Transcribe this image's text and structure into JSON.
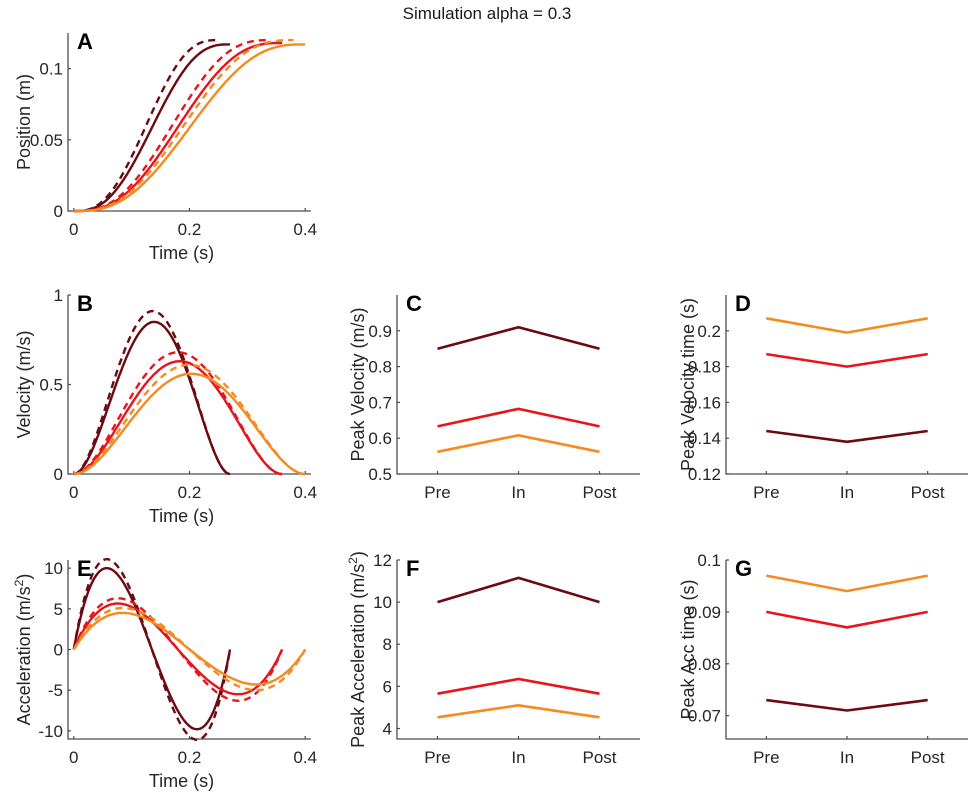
{
  "title": "Simulation alpha = 0.3",
  "colors": {
    "dark_red": "#6b0a10",
    "red": "#e8141c",
    "orange": "#f58a1f",
    "axis": "#4d4d4d",
    "text": "#262626"
  },
  "chart_data": [
    {
      "id": "A",
      "panel_letter": "A",
      "type": "line",
      "xlabel": "Time (s)",
      "ylabel": "Position (m)",
      "xlim": [
        -0.01,
        0.41
      ],
      "ylim": [
        0,
        0.125
      ],
      "xticks": [
        0,
        0.2,
        0.4
      ],
      "xtick_labels": [
        "0",
        "0.2",
        "0.4"
      ],
      "yticks": [
        0,
        0.05,
        0.1
      ],
      "ytick_labels": [
        "0",
        "0.05",
        "0.1"
      ],
      "quantity": "position",
      "amplitude_m": 0.12,
      "series": [
        {
          "name": "dark red solid",
          "color": "dark_red",
          "dashed": false,
          "duration_s": 0.27,
          "amplitude_m": 0.117
        },
        {
          "name": "dark red dashed",
          "color": "dark_red",
          "dashed": true,
          "duration_s": 0.25,
          "amplitude_m": 0.12
        },
        {
          "name": "red solid",
          "color": "red",
          "dashed": false,
          "duration_s": 0.36,
          "amplitude_m": 0.118
        },
        {
          "name": "red dashed",
          "color": "red",
          "dashed": true,
          "duration_s": 0.34,
          "amplitude_m": 0.12
        },
        {
          "name": "orange solid",
          "color": "orange",
          "dashed": false,
          "duration_s": 0.4,
          "amplitude_m": 0.117
        },
        {
          "name": "orange dashed",
          "color": "orange",
          "dashed": true,
          "duration_s": 0.38,
          "amplitude_m": 0.12
        }
      ]
    },
    {
      "id": "B",
      "panel_letter": "B",
      "type": "line",
      "xlabel": "Time (s)",
      "ylabel": "Velocity (m/s)",
      "xlim": [
        -0.01,
        0.41
      ],
      "ylim": [
        0,
        1
      ],
      "xticks": [
        0,
        0.2,
        0.4
      ],
      "xtick_labels": [
        "0",
        "0.2",
        "0.4"
      ],
      "yticks": [
        0,
        0.5,
        1
      ],
      "ytick_labels": [
        "0",
        "0.5",
        "1"
      ],
      "quantity": "velocity",
      "series": [
        {
          "name": "dark red solid",
          "color": "dark_red",
          "dashed": false,
          "duration_s": 0.27,
          "peak": 0.85,
          "peak_time_s": 0.144
        },
        {
          "name": "dark red dashed",
          "color": "dark_red",
          "dashed": true,
          "duration_s": 0.27,
          "peak": 0.91,
          "peak_time_s": 0.138
        },
        {
          "name": "red solid",
          "color": "red",
          "dashed": false,
          "duration_s": 0.36,
          "peak": 0.63,
          "peak_time_s": 0.187
        },
        {
          "name": "red dashed",
          "color": "red",
          "dashed": true,
          "duration_s": 0.36,
          "peak": 0.68,
          "peak_time_s": 0.18
        },
        {
          "name": "orange solid",
          "color": "orange",
          "dashed": false,
          "duration_s": 0.4,
          "peak": 0.56,
          "peak_time_s": 0.207
        },
        {
          "name": "orange dashed",
          "color": "orange",
          "dashed": true,
          "duration_s": 0.4,
          "peak": 0.61,
          "peak_time_s": 0.199
        }
      ]
    },
    {
      "id": "C",
      "panel_letter": "C",
      "type": "line",
      "xlabel": "",
      "ylabel": "Peak Velocity (m/s)",
      "categories": [
        "Pre",
        "In",
        "Post"
      ],
      "xlim": [
        0.5,
        3.5
      ],
      "ylim": [
        0.5,
        1.0
      ],
      "yticks": [
        0.5,
        0.6,
        0.7,
        0.8,
        0.9
      ],
      "ytick_labels": [
        "0.5",
        "0.6",
        "0.7",
        "0.8",
        "0.9"
      ],
      "series": [
        {
          "name": "dark red",
          "color": "dark_red",
          "values": [
            0.85,
            0.91,
            0.85
          ]
        },
        {
          "name": "red",
          "color": "red",
          "values": [
            0.633,
            0.682,
            0.633
          ]
        },
        {
          "name": "orange",
          "color": "orange",
          "values": [
            0.562,
            0.608,
            0.562
          ]
        }
      ]
    },
    {
      "id": "D",
      "panel_letter": "D",
      "type": "line",
      "xlabel": "",
      "ylabel": "Peak Velocity time (s)",
      "categories": [
        "Pre",
        "In",
        "Post"
      ],
      "xlim": [
        0.5,
        3.5
      ],
      "ylim": [
        0.12,
        0.22
      ],
      "yticks": [
        0.12,
        0.14,
        0.16,
        0.18,
        0.2
      ],
      "ytick_labels": [
        "0.12",
        "0.14",
        "0.16",
        "0.18",
        "0.2"
      ],
      "series": [
        {
          "name": "orange",
          "color": "orange",
          "values": [
            0.207,
            0.199,
            0.207
          ]
        },
        {
          "name": "red",
          "color": "red",
          "values": [
            0.187,
            0.18,
            0.187
          ]
        },
        {
          "name": "dark red",
          "color": "dark_red",
          "values": [
            0.144,
            0.138,
            0.144
          ]
        }
      ]
    },
    {
      "id": "E",
      "panel_letter": "E",
      "type": "line",
      "xlabel": "Time (s)",
      "ylabel": "Acceleration (m/s²)",
      "ylabel_parts": {
        "main": "Acceleration (m/s",
        "sup": "2",
        "end": ")"
      },
      "xlim": [
        -0.01,
        0.41
      ],
      "ylim": [
        -11,
        11
      ],
      "xticks": [
        0,
        0.2,
        0.4
      ],
      "xtick_labels": [
        "0",
        "0.2",
        "0.4"
      ],
      "yticks": [
        -10,
        -5,
        0,
        5,
        10
      ],
      "ytick_labels": [
        "-10",
        "-5",
        "0",
        "5",
        "10"
      ],
      "quantity": "acceleration",
      "series": [
        {
          "name": "dark red solid",
          "color": "dark_red",
          "dashed": false,
          "duration_s": 0.27,
          "peak": 10.0,
          "trough": -9.8
        },
        {
          "name": "dark red dashed",
          "color": "dark_red",
          "dashed": true,
          "duration_s": 0.27,
          "peak": 11.1,
          "trough": -11.1
        },
        {
          "name": "red solid",
          "color": "red",
          "dashed": false,
          "duration_s": 0.36,
          "peak": 5.65,
          "trough": -5.5
        },
        {
          "name": "red dashed",
          "color": "red",
          "dashed": true,
          "duration_s": 0.36,
          "peak": 6.3,
          "trough": -6.3
        },
        {
          "name": "orange solid",
          "color": "orange",
          "dashed": false,
          "duration_s": 0.4,
          "peak": 4.5,
          "trough": -4.3
        },
        {
          "name": "orange dashed",
          "color": "orange",
          "dashed": true,
          "duration_s": 0.4,
          "peak": 5.1,
          "trough": -5.0
        }
      ]
    },
    {
      "id": "F",
      "panel_letter": "F",
      "type": "line",
      "xlabel": "",
      "ylabel": "Peak Acceleration (m/s²)",
      "ylabel_parts": {
        "main": "Peak Acceleration (m/s",
        "sup": "2",
        "end": ")"
      },
      "categories": [
        "Pre",
        "In",
        "Post"
      ],
      "xlim": [
        0.5,
        3.5
      ],
      "ylim": [
        3.5,
        12
      ],
      "yticks": [
        4,
        6,
        8,
        10,
        12
      ],
      "ytick_labels": [
        "4",
        "6",
        "8",
        "10",
        "12"
      ],
      "series": [
        {
          "name": "dark red",
          "color": "dark_red",
          "values": [
            10.0,
            11.15,
            10.0
          ]
        },
        {
          "name": "red",
          "color": "red",
          "values": [
            5.65,
            6.35,
            5.65
          ]
        },
        {
          "name": "orange",
          "color": "orange",
          "values": [
            4.53,
            5.1,
            4.53
          ]
        }
      ]
    },
    {
      "id": "G",
      "panel_letter": "G",
      "type": "line",
      "xlabel": "",
      "ylabel": "Peak Acc time (s)",
      "categories": [
        "Pre",
        "In",
        "Post"
      ],
      "xlim": [
        0.5,
        3.5
      ],
      "ylim": [
        0.0655,
        0.1
      ],
      "yticks": [
        0.07,
        0.08,
        0.09,
        0.1
      ],
      "ytick_labels": [
        "0.07",
        "0.08",
        "0.09",
        "0.1"
      ],
      "series": [
        {
          "name": "orange",
          "color": "orange",
          "values": [
            0.097,
            0.094,
            0.097
          ]
        },
        {
          "name": "red",
          "color": "red",
          "values": [
            0.09,
            0.087,
            0.09
          ]
        },
        {
          "name": "dark red",
          "color": "dark_red",
          "values": [
            0.073,
            0.071,
            0.073
          ]
        }
      ]
    }
  ]
}
